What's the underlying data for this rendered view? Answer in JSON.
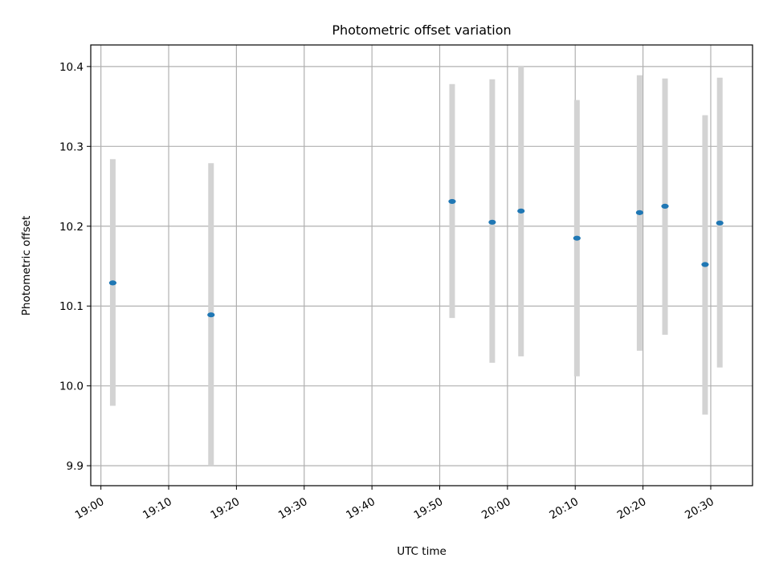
{
  "chart_data": {
    "type": "scatter",
    "title": "Photometric offset variation",
    "xlabel": "UTC time",
    "ylabel": "Photometric offset",
    "xlim": [
      "18:58:30",
      "20:36:10"
    ],
    "ylim": [
      9.875,
      10.427
    ],
    "x_ticks": [
      "19:00",
      "19:10",
      "19:20",
      "19:30",
      "19:40",
      "19:50",
      "20:00",
      "20:10",
      "20:20",
      "20:30"
    ],
    "y_ticks": [
      "9.9",
      "10.0",
      "10.1",
      "10.2",
      "10.3",
      "10.4"
    ],
    "grid": true,
    "colors": {
      "marker": "#1f77b4",
      "errorbar": "#d3d3d3",
      "grid": "#b0b0b0"
    },
    "series": [
      {
        "points": [
          {
            "x": "19:01:45",
            "y": 10.129,
            "ylow": 9.975,
            "yhigh": 10.284
          },
          {
            "x": "19:16:15",
            "y": 10.089,
            "ylow": 9.9,
            "yhigh": 10.279
          },
          {
            "x": "19:51:50",
            "y": 10.231,
            "ylow": 10.085,
            "yhigh": 10.378
          },
          {
            "x": "19:57:45",
            "y": 10.205,
            "ylow": 10.029,
            "yhigh": 10.384
          },
          {
            "x": "20:02:00",
            "y": 10.219,
            "ylow": 10.037,
            "yhigh": 10.401
          },
          {
            "x": "20:10:15",
            "y": 10.185,
            "ylow": 10.012,
            "yhigh": 10.358
          },
          {
            "x": "20:19:30",
            "y": 10.217,
            "ylow": 10.044,
            "yhigh": 10.389
          },
          {
            "x": "20:23:15",
            "y": 10.225,
            "ylow": 10.064,
            "yhigh": 10.385
          },
          {
            "x": "20:29:10",
            "y": 10.152,
            "ylow": 9.964,
            "yhigh": 10.339
          },
          {
            "x": "20:31:20",
            "y": 10.204,
            "ylow": 10.023,
            "yhigh": 10.386
          }
        ]
      }
    ]
  }
}
